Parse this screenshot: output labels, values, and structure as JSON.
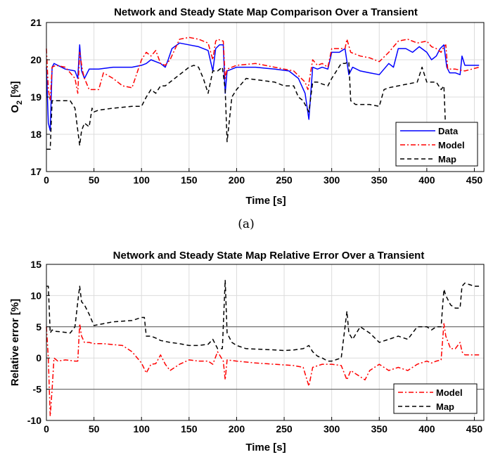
{
  "subfigure_label": "(a)",
  "chart_data": [
    {
      "type": "line",
      "title": "Network and Steady State Map Comparison Over a Transient",
      "xlabel": "Time [s]",
      "ylabel": "O",
      "ylabel_sub": "2",
      "ylabel_unit": " [%]",
      "xlim": [
        0,
        460
      ],
      "ylim": [
        17,
        21
      ],
      "xticks": [
        0,
        50,
        100,
        150,
        200,
        250,
        300,
        350,
        400,
        450
      ],
      "yticks": [
        17,
        18,
        19,
        20,
        21
      ],
      "grid": true,
      "legend_position": "bottom-right",
      "series": [
        {
          "name": "Data",
          "color": "#0000ff",
          "dash": "",
          "x": [
            0,
            2,
            4,
            6,
            8,
            12,
            20,
            30,
            33,
            35,
            37,
            40,
            45,
            55,
            70,
            90,
            100,
            105,
            110,
            115,
            120,
            125,
            128,
            132,
            140,
            150,
            160,
            170,
            175,
            178,
            182,
            186,
            188,
            190,
            200,
            220,
            240,
            255,
            265,
            272,
            276,
            280,
            285,
            290,
            296,
            300,
            308,
            314,
            318,
            322,
            330,
            340,
            350,
            360,
            365,
            370,
            378,
            385,
            392,
            400,
            405,
            410,
            414,
            418,
            421,
            424,
            430,
            435,
            437,
            440,
            445,
            455
          ],
          "y": [
            19.8,
            18.3,
            18.1,
            19.8,
            19.9,
            19.85,
            19.75,
            19.7,
            19.5,
            20.4,
            19.7,
            19.5,
            19.75,
            19.75,
            19.8,
            19.8,
            19.85,
            19.9,
            20.0,
            19.95,
            19.9,
            19.8,
            20.0,
            20.3,
            20.45,
            20.4,
            20.35,
            20.25,
            19.7,
            20.3,
            20.4,
            20.4,
            19.1,
            19.7,
            19.8,
            19.8,
            19.75,
            19.7,
            19.5,
            19.1,
            18.4,
            19.8,
            19.75,
            19.8,
            19.75,
            20.2,
            20.2,
            20.3,
            19.6,
            19.8,
            19.7,
            19.65,
            19.6,
            19.9,
            19.8,
            20.3,
            20.3,
            20.2,
            20.35,
            20.2,
            20.0,
            20.1,
            20.3,
            20.4,
            19.8,
            19.65,
            19.65,
            19.6,
            20.1,
            19.85,
            19.85,
            19.85
          ]
        },
        {
          "name": "Model",
          "color": "#ff0000",
          "dash": "7,3,2,3",
          "x": [
            0,
            2,
            4,
            6,
            10,
            20,
            30,
            33,
            35,
            38,
            40,
            45,
            55,
            60,
            70,
            80,
            90,
            100,
            105,
            110,
            115,
            120,
            125,
            130,
            140,
            150,
            160,
            170,
            175,
            178,
            180,
            186,
            188,
            190,
            200,
            220,
            240,
            260,
            272,
            275,
            280,
            285,
            290,
            296,
            300,
            310,
            314,
            316,
            320,
            330,
            340,
            350,
            360,
            370,
            380,
            390,
            400,
            405,
            410,
            415,
            418,
            420,
            422,
            430,
            440,
            455
          ],
          "y": [
            20.3,
            19.2,
            18.9,
            19.8,
            19.85,
            19.8,
            19.5,
            19.1,
            20.2,
            19.7,
            19.5,
            19.2,
            19.2,
            19.65,
            19.5,
            19.3,
            19.25,
            20.0,
            20.2,
            20.1,
            20.25,
            19.9,
            19.85,
            20.0,
            20.55,
            20.6,
            20.55,
            20.45,
            20.0,
            20.5,
            20.55,
            20.5,
            19.5,
            19.75,
            19.85,
            19.9,
            19.8,
            19.7,
            19.4,
            19.2,
            20.0,
            19.85,
            19.9,
            19.8,
            20.3,
            20.3,
            20.3,
            20.55,
            20.2,
            20.1,
            20.05,
            19.95,
            20.2,
            20.5,
            20.55,
            20.45,
            20.5,
            20.35,
            20.3,
            20.2,
            20.35,
            20.4,
            19.75,
            19.75,
            19.7,
            19.8
          ]
        },
        {
          "name": "Map",
          "color": "#000000",
          "dash": "6,4",
          "x": [
            0,
            4,
            6,
            8,
            15,
            25,
            30,
            33,
            35,
            37,
            40,
            45,
            48,
            50,
            55,
            70,
            90,
            100,
            105,
            110,
            115,
            120,
            125,
            135,
            140,
            150,
            155,
            160,
            165,
            170,
            175,
            180,
            185,
            188,
            190,
            195,
            200,
            210,
            240,
            250,
            260,
            265,
            270,
            276,
            280,
            285,
            290,
            296,
            300,
            310,
            314,
            318,
            320,
            325,
            330,
            340,
            350,
            355,
            360,
            370,
            380,
            390,
            395,
            400,
            410,
            415,
            418,
            420
          ],
          "y": [
            17.6,
            17.6,
            18.9,
            18.9,
            18.9,
            18.9,
            18.7,
            18.1,
            17.7,
            18.1,
            18.3,
            18.2,
            18.7,
            18.6,
            18.65,
            18.7,
            18.75,
            18.75,
            19.0,
            19.2,
            19.1,
            19.3,
            19.3,
            19.5,
            19.6,
            19.8,
            19.85,
            19.8,
            19.5,
            19.1,
            19.7,
            19.7,
            19.8,
            19.2,
            17.8,
            19.0,
            19.2,
            19.5,
            19.4,
            19.3,
            19.3,
            19.0,
            18.9,
            18.6,
            19.4,
            19.4,
            19.35,
            19.3,
            19.5,
            19.9,
            19.9,
            19.95,
            18.9,
            18.8,
            18.8,
            18.8,
            18.75,
            19.2,
            19.25,
            19.3,
            19.35,
            19.4,
            19.8,
            19.4,
            19.4,
            19.2,
            19.3,
            18.0
          ]
        }
      ]
    },
    {
      "type": "line",
      "title": "Network and Steady State Map Relative Error Over a Transient",
      "xlabel": "Time [s]",
      "ylabel": "Relative error [%]",
      "xlim": [
        0,
        460
      ],
      "ylim": [
        -10,
        15
      ],
      "xticks": [
        0,
        50,
        100,
        150,
        200,
        250,
        300,
        350,
        400,
        450
      ],
      "yticks": [
        -10,
        -5,
        0,
        5,
        10,
        15
      ],
      "grid": true,
      "reference_lines": [
        {
          "y": 5,
          "color": "#555555"
        },
        {
          "y": -5,
          "color": "#555555"
        }
      ],
      "legend_position": "bottom-right",
      "series": [
        {
          "name": "Model",
          "color": "#ff0000",
          "dash": "7,3,2,3",
          "x": [
            0,
            2,
            4,
            6,
            8,
            12,
            20,
            30,
            33,
            35,
            37,
            40,
            45,
            50,
            60,
            80,
            90,
            100,
            105,
            110,
            115,
            120,
            125,
            130,
            140,
            150,
            160,
            170,
            175,
            180,
            186,
            188,
            190,
            200,
            220,
            240,
            260,
            270,
            276,
            280,
            290,
            300,
            310,
            316,
            320,
            330,
            335,
            340,
            350,
            360,
            370,
            380,
            390,
            400,
            405,
            410,
            415,
            418,
            420,
            425,
            430,
            435,
            437,
            440,
            450,
            455
          ],
          "y": [
            5.0,
            0.0,
            -9.3,
            -5.0,
            0.0,
            -0.5,
            -0.3,
            -0.5,
            -0.5,
            5.5,
            3.5,
            2.5,
            2.5,
            2.3,
            2.3,
            2.0,
            1.0,
            -0.8,
            -2.4,
            -1.0,
            -0.9,
            0.5,
            -1.0,
            -2.0,
            -1.0,
            -0.3,
            -0.5,
            -0.5,
            -1.0,
            1.0,
            -0.5,
            -3.5,
            -0.3,
            -0.5,
            -0.8,
            -1.0,
            -1.2,
            -1.5,
            -4.5,
            -1.5,
            -1.0,
            -1.0,
            -1.2,
            -3.5,
            -2.0,
            -3.0,
            -3.5,
            -2.0,
            -1.0,
            -2.0,
            -1.5,
            -2.0,
            -1.0,
            -0.5,
            -0.8,
            -0.5,
            -0.3,
            5.5,
            3.5,
            1.5,
            1.5,
            2.5,
            1.0,
            0.5,
            0.5,
            0.5
          ]
        },
        {
          "name": "Map",
          "color": "#000000",
          "dash": "6,4",
          "x": [
            0,
            2,
            4,
            6,
            8,
            15,
            25,
            30,
            33,
            35,
            37,
            40,
            45,
            50,
            60,
            70,
            90,
            100,
            103,
            105,
            110,
            115,
            120,
            130,
            140,
            150,
            160,
            170,
            175,
            180,
            185,
            188,
            190,
            195,
            200,
            210,
            240,
            250,
            260,
            270,
            276,
            280,
            285,
            290,
            296,
            300,
            310,
            316,
            318,
            322,
            330,
            340,
            350,
            360,
            370,
            380,
            390,
            400,
            405,
            410,
            415,
            418,
            420,
            425,
            430,
            435,
            437,
            440,
            450,
            455
          ],
          "y": [
            11.5,
            11.5,
            4.0,
            4.5,
            4.3,
            4.2,
            4.0,
            5.0,
            9.0,
            11.5,
            9.0,
            8.5,
            7.0,
            5.2,
            5.5,
            5.8,
            6.0,
            6.5,
            6.5,
            3.5,
            3.5,
            3.2,
            2.8,
            2.5,
            2.3,
            2.0,
            2.0,
            2.2,
            3.0,
            1.5,
            1.5,
            12.5,
            4.0,
            2.5,
            2.0,
            1.5,
            1.3,
            1.2,
            1.3,
            1.5,
            2.0,
            1.0,
            0.3,
            0.0,
            -0.5,
            -0.5,
            0.0,
            7.5,
            4.0,
            3.0,
            5.0,
            4.0,
            2.5,
            3.0,
            3.5,
            3.0,
            5.0,
            5.0,
            4.5,
            5.0,
            5.0,
            11.0,
            10.0,
            8.5,
            8.0,
            8.0,
            11.5,
            12.0,
            11.5,
            11.5
          ]
        }
      ]
    }
  ]
}
